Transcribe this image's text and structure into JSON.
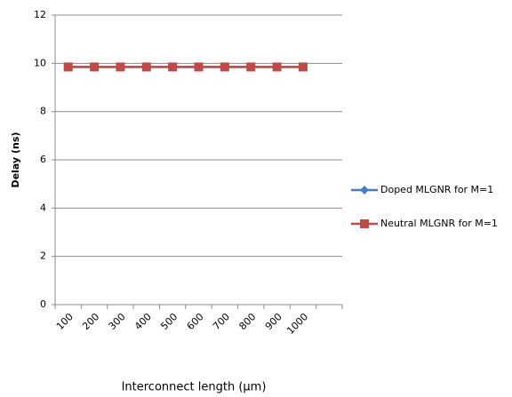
{
  "chart_data": {
    "type": "line",
    "x_label": "Interconnect length (µm)",
    "y_label": "Delay (ns)",
    "categories": [
      "100",
      "200",
      "300",
      "400",
      "500",
      "600",
      "700",
      "800",
      "900",
      "1000",
      null
    ],
    "series": [
      {
        "name": "Doped MLGNR for M=1",
        "color": "#4a7ebb",
        "marker": "diamond",
        "values": [
          9.85,
          9.85,
          9.85,
          9.85,
          9.85,
          9.85,
          9.85,
          9.85,
          9.85,
          9.85,
          null
        ]
      },
      {
        "name": "Neutral MLGNR for M=1",
        "color": "#be4b48",
        "marker": "square",
        "values": [
          9.85,
          9.85,
          9.85,
          9.85,
          9.85,
          9.85,
          9.85,
          9.85,
          9.85,
          9.85,
          null
        ]
      }
    ],
    "ylim": [
      0,
      12
    ],
    "yticks": [
      0,
      2,
      4,
      6,
      8,
      10,
      12
    ],
    "grid": true,
    "legend": "right"
  }
}
